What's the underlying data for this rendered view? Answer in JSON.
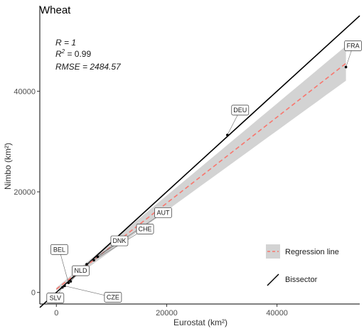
{
  "chart_data": {
    "type": "scatter",
    "title": "Wheat",
    "xlabel": "Eurostat (km²)",
    "ylabel": "Nimbo (km²)",
    "xlim": [
      -3000,
      55000
    ],
    "ylim": [
      -2300,
      57000
    ],
    "x_ticks": [
      0,
      20000,
      40000
    ],
    "y_ticks": [
      0,
      20000,
      40000
    ],
    "x_tick_labels": [
      "0",
      "20000",
      "40000"
    ],
    "y_tick_labels": [
      "0",
      "20000",
      "40000"
    ],
    "grid": false,
    "stats": {
      "r": "R = 1",
      "r2_prefix": "R",
      "r2_exp": "2",
      "r2_value": " = 0.99",
      "rmse": "RMSE = 2484.57"
    },
    "points": [
      {
        "label": "SLV",
        "x": 1100,
        "y": 1000
      },
      {
        "label": "CZE",
        "x": 1500,
        "y": 1300
      },
      {
        "label": "BEL",
        "x": 2200,
        "y": 1900
      },
      {
        "label": "NLD",
        "x": 2600,
        "y": 2200
      },
      {
        "label": "DNK",
        "x": 5500,
        "y": 5600
      },
      {
        "label": "CHE",
        "x": 6800,
        "y": 6400
      },
      {
        "label": "AUT",
        "x": 7500,
        "y": 7100
      },
      {
        "label": "DEU",
        "x": 31000,
        "y": 31300
      },
      {
        "label": "FRA",
        "x": 52500,
        "y": 44800
      }
    ],
    "regression": {
      "slope": 0.855,
      "intercept": 650,
      "x_range": [
        0,
        52500
      ],
      "color": "#f8766d",
      "band_color": "#d3d3d3"
    },
    "bisector": {
      "color": "#000000"
    },
    "legend": {
      "position": "bottom-right",
      "items": [
        {
          "label": "Regression line",
          "kind": "regression"
        },
        {
          "label": "Bissector",
          "kind": "bisector"
        }
      ]
    }
  }
}
